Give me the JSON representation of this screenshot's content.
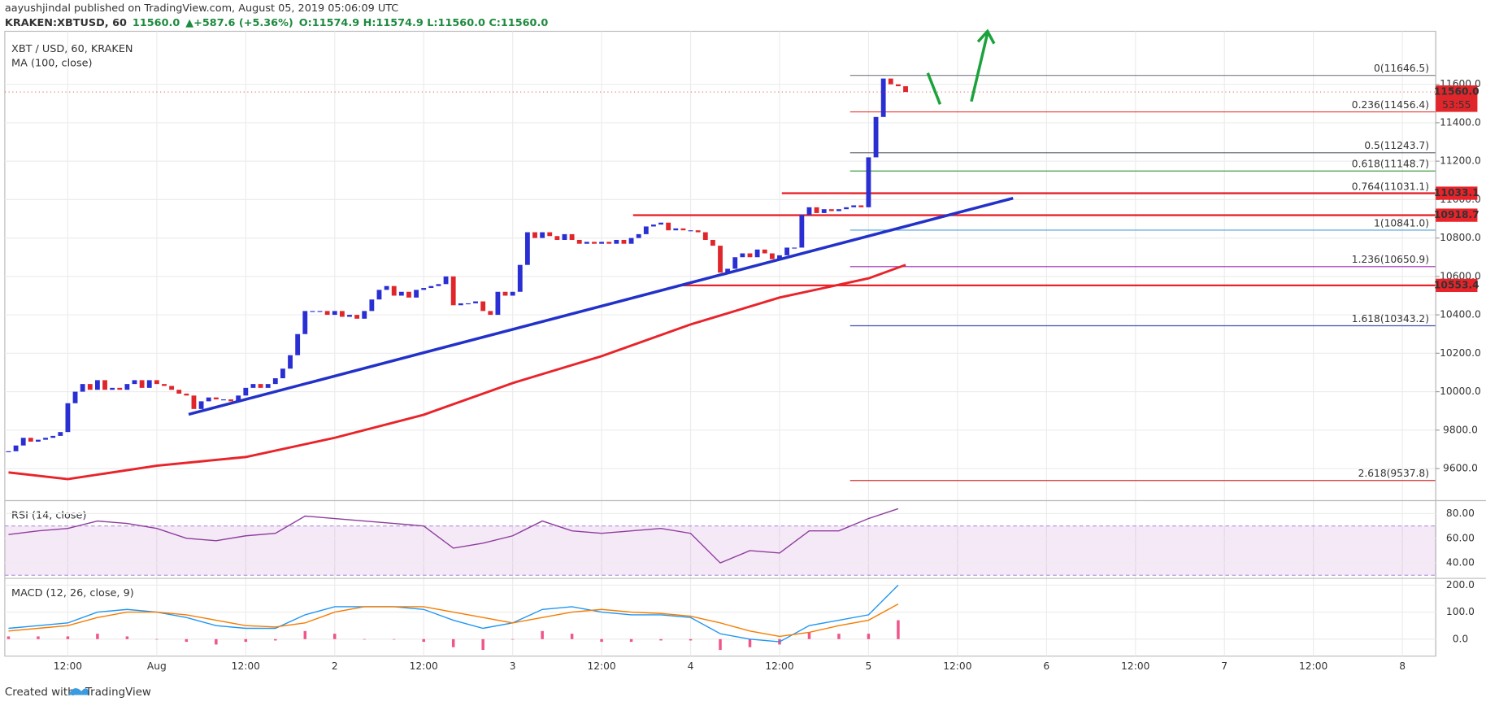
{
  "header": {
    "published": "aayushjindal published on TradingView.com, August 05, 2019 05:06:09 UTC",
    "symbol": "KRAKEN:XBTUSD, 60",
    "last": "11560.0",
    "change": "+587.6 (+5.36%)",
    "ohlc": "O:11574.9 H:11574.9 L:11560.0 C:11560.0"
  },
  "footer": {
    "created": "Created with",
    "brand": "TradingView"
  },
  "chart_data": {
    "type": "candlestick",
    "legend": "XBT / USD, 60, KRAKEN",
    "up_color": "#2a2fd4",
    "down_color": "#e0262b",
    "categories": [
      null,
      null,
      null,
      null,
      null,
      null,
      null,
      null,
      "12:00",
      null,
      null,
      null,
      null,
      null,
      null,
      null,
      null,
      null,
      null,
      null,
      "Aug",
      null,
      null,
      null,
      null,
      null,
      null,
      null,
      null,
      null,
      null,
      null,
      "12:00",
      null,
      null,
      null,
      null,
      null,
      null,
      null,
      null,
      null,
      null,
      null,
      "2",
      null,
      null,
      null,
      null,
      null,
      null,
      null,
      null,
      null,
      null,
      null,
      "12:00",
      null,
      null,
      null,
      null,
      null,
      null,
      null,
      null,
      null,
      null,
      null,
      "3",
      null,
      null,
      null,
      null,
      null,
      null,
      null,
      null,
      null,
      null,
      null,
      "12:00",
      null,
      null,
      null,
      null,
      null,
      null,
      null,
      null,
      null,
      null,
      null,
      "4",
      null,
      null,
      null,
      null,
      null,
      null,
      null,
      null,
      null,
      null,
      null,
      "12:00",
      null,
      null,
      null,
      null,
      null,
      null,
      null,
      null,
      null,
      null,
      null,
      "5",
      null,
      null,
      null,
      null,
      null,
      null,
      null,
      null,
      null,
      null,
      null,
      "12:00",
      null,
      null,
      null,
      null,
      null,
      null,
      null,
      null,
      null,
      null,
      null,
      "6",
      null,
      null,
      null,
      null,
      null,
      null,
      null,
      null,
      null,
      null,
      null,
      "12:00",
      null,
      null,
      null,
      null,
      null,
      null,
      null,
      null,
      null,
      null,
      null,
      "7",
      null,
      null,
      null,
      null,
      null,
      null,
      null,
      null,
      null,
      null,
      null,
      "12:00",
      null,
      null,
      null,
      null,
      null,
      null,
      null,
      null,
      null,
      null,
      null,
      "8",
      null,
      null,
      null,
      null
    ],
    "values": [
      9690,
      9720,
      9760,
      9740,
      9750,
      9760,
      9770,
      9790,
      9940,
      10000,
      10040,
      10010,
      10060,
      10010,
      10020,
      10010,
      10040,
      10060,
      10020,
      10060,
      10040,
      10030,
      10010,
      9990,
      9980,
      9910,
      9950,
      9970,
      9960,
      9960,
      9950,
      9980,
      10020,
      10040,
      10020,
      10040,
      10070,
      10120,
      10190,
      10300,
      10420,
      10420,
      10420,
      10400,
      10420,
      10390,
      10400,
      10380,
      10420,
      10480,
      10530,
      10550,
      10500,
      10520,
      10490,
      10530,
      10540,
      10550,
      10560,
      10600,
      10450,
      10460,
      10460,
      10470,
      10420,
      10400,
      10520,
      10500,
      10520,
      10660,
      10830,
      10800,
      10830,
      10810,
      10790,
      10820,
      10790,
      10770,
      10780,
      10770,
      10780,
      10770,
      10790,
      10770,
      10800,
      10820,
      10860,
      10870,
      10880,
      10840,
      10850,
      10840,
      10840,
      10830,
      10790,
      10760,
      10620,
      10640,
      10700,
      10720,
      10700,
      10740,
      10720,
      10690,
      10710,
      10750,
      10750,
      10920,
      10960,
      10930,
      10950,
      10940,
      10950,
      10960,
      10970,
      10960,
      11220,
      11430,
      11630,
      11600,
      11590,
      11560,
      null,
      null,
      null,
      null,
      null,
      null,
      null,
      null,
      null,
      null,
      null,
      null,
      null,
      null,
      null,
      null,
      null,
      null,
      null,
      null,
      null,
      null,
      null,
      null,
      null,
      null,
      null,
      null,
      null,
      null,
      null,
      null,
      null,
      null,
      null,
      null,
      null,
      null,
      null,
      null,
      null,
      null,
      null,
      null,
      null,
      null,
      null,
      null,
      null,
      null,
      null,
      null,
      null,
      null,
      null,
      null,
      null,
      null,
      null,
      null,
      null,
      null,
      null,
      null,
      null,
      null,
      null,
      null,
      null,
      null,
      null
    ],
    "ylim": [
      9433,
      11876
    ],
    "yticks": [
      {
        "value": 9600,
        "label": "9600.0"
      },
      {
        "value": 9800,
        "label": "9800.0"
      },
      {
        "value": 10000,
        "label": "10000.0"
      },
      {
        "value": 10200,
        "label": "10200.0"
      },
      {
        "value": 10400,
        "label": "10400.0"
      },
      {
        "value": 10600,
        "label": "10600.0"
      },
      {
        "value": 10800,
        "label": "10800.0"
      },
      {
        "value": 11000,
        "label": "11000.0"
      },
      {
        "value": 11200,
        "label": "11200.0"
      },
      {
        "value": 11400,
        "label": "11400.0"
      },
      {
        "value": 11600,
        "label": "11600.0"
      }
    ],
    "grid": true,
    "ma": {
      "name": "MA (100, close)",
      "color": "#e8242a",
      "x": [
        0,
        8,
        20,
        32,
        44,
        56,
        68,
        80,
        92,
        104,
        116,
        121
      ],
      "values": [
        9580,
        9545,
        9615,
        9660,
        9760,
        9880,
        10045,
        10185,
        10350,
        10490,
        10590,
        10660
      ]
    },
    "fib": [
      {
        "label": "0(11646.5)",
        "value": 11646.5,
        "color": "#787b86"
      },
      {
        "label": "0.236(11456.4)",
        "value": 11456.4,
        "color": "#e53935"
      },
      {
        "label": "0.5(11243.7)",
        "value": 11243.7,
        "color": "#5d606b"
      },
      {
        "label": "0.618(11148.7)",
        "value": 11148.7,
        "color": "#43a047"
      },
      {
        "label": "0.764(11031.1)",
        "value": 11031.1,
        "color": "#0097a7"
      },
      {
        "label": "1(10841.0)",
        "value": 10841.0,
        "color": "#4a9fd4"
      },
      {
        "label": "1.236(10650.9)",
        "value": 10650.9,
        "color": "#9c27b0"
      },
      {
        "label": "1.618(10343.2)",
        "value": 10343.2,
        "color": "#3f51b5"
      },
      {
        "label": "2.618(9537.8)",
        "value": 9537.8,
        "color": "#d32f2f"
      }
    ],
    "levels": [
      11033.1,
      10918.7,
      10553.4
    ],
    "level_color": "#e8242a",
    "last": {
      "value": 11560,
      "label": "11560.0"
    },
    "countdown": "53:55",
    "indicator_x": [
      0,
      4,
      8,
      12,
      16,
      20,
      24,
      28,
      32,
      36,
      40,
      44,
      48,
      52,
      56,
      60,
      64,
      68,
      72,
      76,
      80,
      84,
      88,
      92,
      96,
      100,
      104,
      108,
      112,
      116,
      120
    ],
    "rsi": {
      "name": "RSI (14, close)",
      "color": "#8e3d9e",
      "ylim": [
        29,
        89
      ],
      "band": [
        30,
        70
      ],
      "yticks": [
        {
          "value": 40,
          "label": "40.00"
        },
        {
          "value": 60,
          "label": "60.00"
        },
        {
          "value": 80,
          "label": "80.00"
        }
      ],
      "values": [
        63,
        66,
        68,
        74,
        72,
        68,
        60,
        58,
        62,
        64,
        78,
        76,
        74,
        72,
        70,
        52,
        56,
        62,
        74,
        66,
        64,
        66,
        68,
        64,
        40,
        50,
        48,
        66,
        66,
        76,
        84
      ]
    },
    "macd": {
      "name": "MACD (12, 26, close, 9)",
      "ylim": [
        -56,
        218
      ],
      "yticks": [
        {
          "value": 0,
          "label": "0.0"
        },
        {
          "value": 100,
          "label": "100.0"
        },
        {
          "value": 200,
          "label": "200.0"
        }
      ],
      "series": [
        {
          "name": "MACD",
          "color": "#2196f3",
          "values": [
            40,
            50,
            60,
            100,
            110,
            100,
            80,
            50,
            40,
            40,
            90,
            120,
            120,
            120,
            110,
            70,
            40,
            60,
            110,
            120,
            100,
            90,
            90,
            80,
            20,
            0,
            -10,
            50,
            70,
            90,
            200
          ]
        },
        {
          "name": "Signal",
          "color": "#f57c00",
          "values": [
            30,
            40,
            50,
            80,
            100,
            100,
            90,
            70,
            50,
            45,
            60,
            100,
            120,
            120,
            120,
            100,
            80,
            60,
            80,
            100,
            110,
            100,
            95,
            85,
            60,
            30,
            10,
            25,
            50,
            70,
            130
          ]
        }
      ],
      "histogram": {
        "color": "#e91e63",
        "values": [
          10,
          10,
          10,
          20,
          10,
          0,
          -10,
          -20,
          -10,
          -5,
          30,
          20,
          0,
          0,
          -10,
          -30,
          -40,
          0,
          30,
          20,
          -10,
          -10,
          -5,
          -5,
          -40,
          -30,
          -20,
          25,
          20,
          20,
          70
        ]
      }
    }
  }
}
